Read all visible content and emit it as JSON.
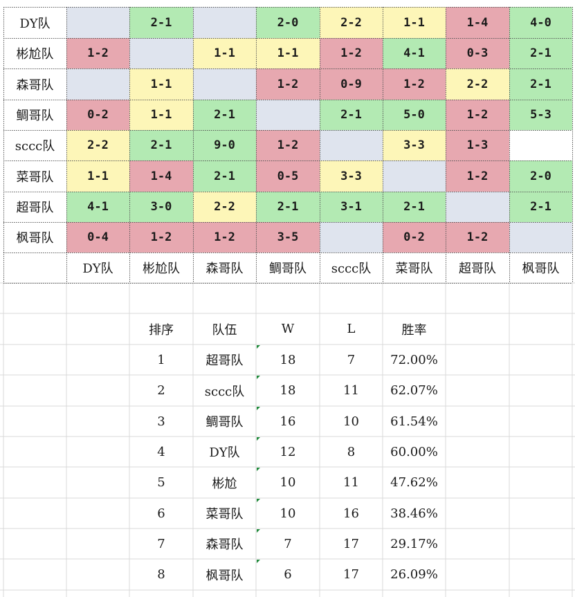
{
  "matrix": {
    "row_teams": [
      "DY队",
      "彬尬队",
      "森哥队",
      "鲷哥队",
      "sccc队",
      "菜哥队",
      "超哥队",
      "枫哥队"
    ],
    "col_teams": [
      "DY队",
      "彬尬队",
      "森哥队",
      "鲷哥队",
      "sccc队",
      "菜哥队",
      "超哥队",
      "枫哥队"
    ],
    "rows": [
      [
        {
          "v": "",
          "c": "blank"
        },
        {
          "v": "2-1",
          "c": "green"
        },
        {
          "v": "",
          "c": "blank"
        },
        {
          "v": "2-0",
          "c": "green"
        },
        {
          "v": "2-2",
          "c": "yellow"
        },
        {
          "v": "1-1",
          "c": "yellow"
        },
        {
          "v": "1-4",
          "c": "red"
        },
        {
          "v": "4-0",
          "c": "green"
        }
      ],
      [
        {
          "v": "1-2",
          "c": "red"
        },
        {
          "v": "",
          "c": "blank"
        },
        {
          "v": "1-1",
          "c": "yellow"
        },
        {
          "v": "1-1",
          "c": "yellow"
        },
        {
          "v": "1-2",
          "c": "red"
        },
        {
          "v": "4-1",
          "c": "green"
        },
        {
          "v": "0-3",
          "c": "red"
        },
        {
          "v": "2-1",
          "c": "green"
        }
      ],
      [
        {
          "v": "",
          "c": "blank"
        },
        {
          "v": "1-1",
          "c": "yellow"
        },
        {
          "v": "",
          "c": "blank"
        },
        {
          "v": "1-2",
          "c": "red"
        },
        {
          "v": "0-9",
          "c": "red"
        },
        {
          "v": "1-2",
          "c": "red"
        },
        {
          "v": "2-2",
          "c": "yellow"
        },
        {
          "v": "2-1",
          "c": "green"
        }
      ],
      [
        {
          "v": "0-2",
          "c": "red"
        },
        {
          "v": "1-1",
          "c": "yellow"
        },
        {
          "v": "2-1",
          "c": "green"
        },
        {
          "v": "",
          "c": "blank"
        },
        {
          "v": "2-1",
          "c": "green"
        },
        {
          "v": "5-0",
          "c": "green"
        },
        {
          "v": "1-2",
          "c": "red"
        },
        {
          "v": "5-3",
          "c": "green"
        }
      ],
      [
        {
          "v": "2-2",
          "c": "yellow"
        },
        {
          "v": "2-1",
          "c": "green"
        },
        {
          "v": "9-0",
          "c": "green"
        },
        {
          "v": "1-2",
          "c": "red"
        },
        {
          "v": "",
          "c": "blank"
        },
        {
          "v": "3-3",
          "c": "yellow"
        },
        {
          "v": "1-3",
          "c": "red"
        },
        {
          "v": "",
          "c": "none"
        }
      ],
      [
        {
          "v": "1-1",
          "c": "yellow"
        },
        {
          "v": "1-4",
          "c": "red"
        },
        {
          "v": "2-1",
          "c": "green"
        },
        {
          "v": "0-5",
          "c": "red"
        },
        {
          "v": "3-3",
          "c": "yellow"
        },
        {
          "v": "",
          "c": "blank"
        },
        {
          "v": "1-2",
          "c": "red"
        },
        {
          "v": "2-0",
          "c": "green"
        }
      ],
      [
        {
          "v": "4-1",
          "c": "green"
        },
        {
          "v": "3-0",
          "c": "green"
        },
        {
          "v": "2-2",
          "c": "yellow"
        },
        {
          "v": "2-1",
          "c": "green"
        },
        {
          "v": "3-1",
          "c": "green"
        },
        {
          "v": "2-1",
          "c": "green"
        },
        {
          "v": "",
          "c": "blank"
        },
        {
          "v": "2-1",
          "c": "green"
        }
      ],
      [
        {
          "v": "0-4",
          "c": "red"
        },
        {
          "v": "1-2",
          "c": "red"
        },
        {
          "v": "1-2",
          "c": "red"
        },
        {
          "v": "3-5",
          "c": "red"
        },
        {
          "v": "",
          "c": "blank"
        },
        {
          "v": "0-2",
          "c": "red"
        },
        {
          "v": "1-2",
          "c": "red"
        },
        {
          "v": "",
          "c": "blank"
        }
      ]
    ]
  },
  "colors": {
    "green": "#b3eab3",
    "yellow": "#fdf6b8",
    "red": "#e7a8b0",
    "blank": "#dfe4ee",
    "gridline": "#d9d9d9",
    "marker": "#1f8a3a"
  },
  "standings": {
    "headers": [
      "排序",
      "队伍",
      "W",
      "L",
      "胜率"
    ],
    "rows": [
      [
        "1",
        "超哥队",
        "18",
        "7",
        "72.00%"
      ],
      [
        "2",
        "sccc队",
        "18",
        "11",
        "62.07%"
      ],
      [
        "3",
        "鲷哥队",
        "16",
        "10",
        "61.54%"
      ],
      [
        "4",
        "DY队",
        "12",
        "8",
        "60.00%"
      ],
      [
        "5",
        "彬尬",
        "10",
        "11",
        "47.62%"
      ],
      [
        "6",
        "菜哥队",
        "10",
        "16",
        "38.46%"
      ],
      [
        "7",
        "森哥队",
        "7",
        "17",
        "29.17%"
      ],
      [
        "8",
        "枫哥队",
        "6",
        "17",
        "26.09%"
      ]
    ]
  }
}
